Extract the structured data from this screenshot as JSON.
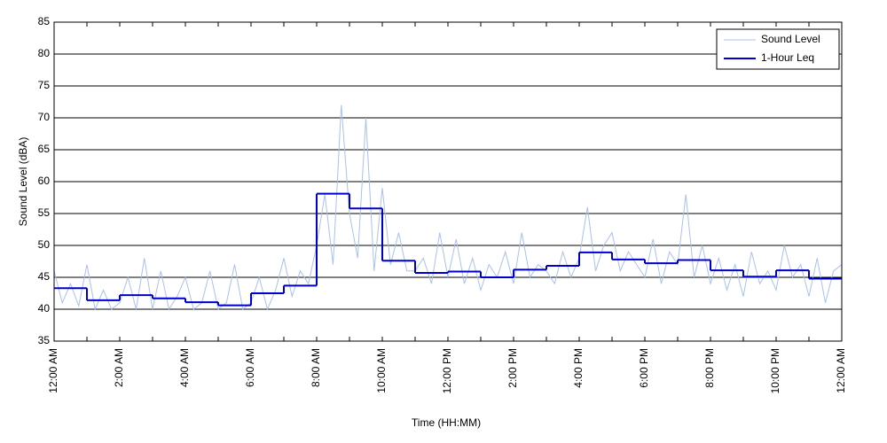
{
  "chart_data": {
    "type": "line",
    "xlabel": "Time (HH:MM)",
    "ylabel": "Sound Level (dBA)",
    "xlim": [
      0,
      24
    ],
    "ylim": [
      35,
      85
    ],
    "xticks": [
      {
        "value": 0,
        "label": "12:00 AM"
      },
      {
        "value": 2,
        "label": "2:00 AM"
      },
      {
        "value": 4,
        "label": "4:00 AM"
      },
      {
        "value": 6,
        "label": "6:00 AM"
      },
      {
        "value": 8,
        "label": "8:00 AM"
      },
      {
        "value": 10,
        "label": "10:00 AM"
      },
      {
        "value": 12,
        "label": "12:00 PM"
      },
      {
        "value": 14,
        "label": "2:00 PM"
      },
      {
        "value": 16,
        "label": "4:00 PM"
      },
      {
        "value": 18,
        "label": "6:00 PM"
      },
      {
        "value": 20,
        "label": "8:00 PM"
      },
      {
        "value": 22,
        "label": "10:00 PM"
      },
      {
        "value": 24,
        "label": "12:00 AM"
      }
    ],
    "xminorticks": [
      1,
      3,
      5,
      7,
      9,
      11,
      13,
      15,
      17,
      19,
      21,
      23
    ],
    "yticks": [
      35,
      40,
      45,
      50,
      55,
      60,
      65,
      70,
      75,
      80,
      85
    ],
    "grid": true,
    "legend": "upper right",
    "series": [
      {
        "name": "Sound Level",
        "color": "#a9c0f0",
        "x": [
          0,
          0.25,
          0.5,
          0.75,
          1,
          1.25,
          1.5,
          1.75,
          2,
          2.25,
          2.5,
          2.75,
          3,
          3.25,
          3.5,
          3.75,
          4,
          4.25,
          4.5,
          4.75,
          5,
          5.25,
          5.5,
          5.75,
          6,
          6.25,
          6.5,
          6.75,
          7,
          7.25,
          7.5,
          7.75,
          8,
          8.25,
          8.5,
          8.75,
          9,
          9.25,
          9.5,
          9.75,
          10,
          10.25,
          10.5,
          10.75,
          11,
          11.25,
          11.5,
          11.75,
          12,
          12.25,
          12.5,
          12.75,
          13,
          13.25,
          13.5,
          13.75,
          14,
          14.25,
          14.5,
          14.75,
          15,
          15.25,
          15.5,
          15.75,
          16,
          16.25,
          16.5,
          16.75,
          17,
          17.25,
          17.5,
          17.75,
          18,
          18.25,
          18.5,
          18.75,
          19,
          19.25,
          19.5,
          19.75,
          20,
          20.25,
          20.5,
          20.75,
          21,
          21.25,
          21.5,
          21.75,
          22,
          22.25,
          22.5,
          22.75,
          23,
          23.25,
          23.5,
          23.75,
          24
        ],
        "values": [
          46,
          41,
          44,
          40.5,
          47,
          40,
          43,
          40,
          41,
          45,
          40,
          48,
          40,
          46,
          40,
          42,
          45,
          40,
          41,
          46,
          40,
          41,
          47,
          40,
          41,
          45,
          40,
          43,
          48,
          42,
          46,
          44,
          50,
          58,
          47,
          72,
          55,
          48,
          70,
          46,
          59,
          47,
          52,
          46,
          46,
          48,
          44,
          52,
          45,
          51,
          44,
          48,
          43,
          47,
          45,
          49,
          44,
          52,
          45,
          47,
          46,
          44,
          49,
          45,
          48,
          56,
          46,
          50,
          52,
          46,
          49,
          47,
          45,
          51,
          44,
          49,
          47,
          58,
          45,
          50,
          44,
          48,
          43,
          47,
          42,
          49,
          44,
          46,
          43,
          50,
          45,
          47,
          42,
          48,
          41,
          46,
          47
        ]
      },
      {
        "name": "1-Hour Leq",
        "color": "#0000cc",
        "step": "post",
        "x": [
          0,
          1,
          2,
          3,
          4,
          5,
          6,
          7,
          8,
          9,
          10,
          11,
          12,
          13,
          14,
          15,
          16,
          17,
          18,
          19,
          20,
          21,
          22,
          23
        ],
        "values": [
          43.3,
          41.4,
          42.2,
          41.7,
          41.1,
          40.6,
          42.5,
          43.7,
          58.1,
          55.8,
          47.6,
          45.7,
          45.9,
          45.0,
          46.2,
          46.8,
          48.9,
          47.8,
          47.2,
          47.7,
          46.1,
          45.1,
          46.1,
          44.8
        ]
      }
    ]
  }
}
